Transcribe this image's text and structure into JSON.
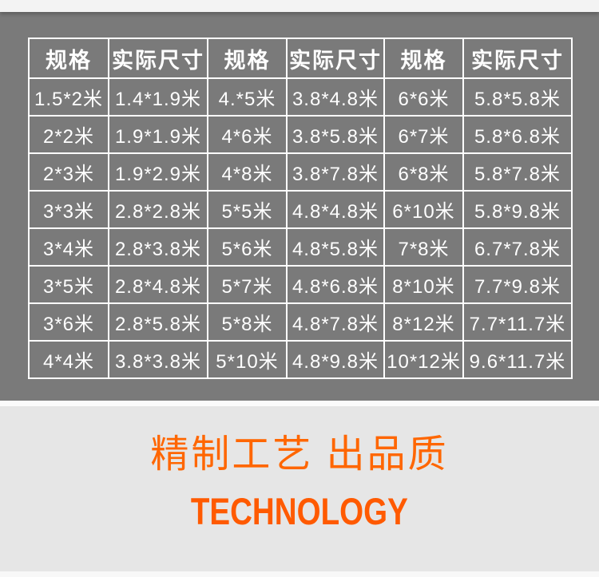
{
  "table": {
    "headers": [
      "规格",
      "实际尺寸",
      "规格",
      "实际尺寸",
      "规格",
      "实际尺寸"
    ],
    "rows": [
      [
        "1.5*2米",
        "1.4*1.9米",
        "4.*5米",
        "3.8*4.8米",
        "6*6米",
        "5.8*5.8米"
      ],
      [
        "2*2米",
        "1.9*1.9米",
        "4*6米",
        "3.8*5.8米",
        "6*7米",
        "5.8*6.8米"
      ],
      [
        "2*3米",
        "1.9*2.9米",
        "4*8米",
        "3.8*7.8米",
        "6*8米",
        "5.8*7.8米"
      ],
      [
        "3*3米",
        "2.8*2.8米",
        "5*5米",
        "4.8*4.8米",
        "6*10米",
        "5.8*9.8米"
      ],
      [
        "3*4米",
        "2.8*3.8米",
        "5*6米",
        "4.8*5.8米",
        "7*8米",
        "6.7*7.8米"
      ],
      [
        "3*5米",
        "2.8*4.8米",
        "5*7米",
        "4.8*6.8米",
        "8*10米",
        "7.7*9.8米"
      ],
      [
        "3*6米",
        "2.8*5.8米",
        "5*8米",
        "4.8*7.8米",
        "8*12米",
        "7.7*11.7米"
      ],
      [
        "4*4米",
        "3.8*3.8米",
        "5*10米",
        "4.8*9.8米",
        "10*12米",
        "9.6*11.7米"
      ]
    ]
  },
  "banner": {
    "title": "精制工艺 出品质",
    "subtitle": "TECHNOLOGY"
  },
  "colors": {
    "panel_gray": "#7a7a7a",
    "table_border": "#ffffff",
    "cell_text": "#ffffff",
    "accent_orange": "#ff6600",
    "subtitle_orange": "#ff5a00",
    "banner_bg": "#e6e6e6",
    "top_band_bg": "#f3f3f3"
  }
}
